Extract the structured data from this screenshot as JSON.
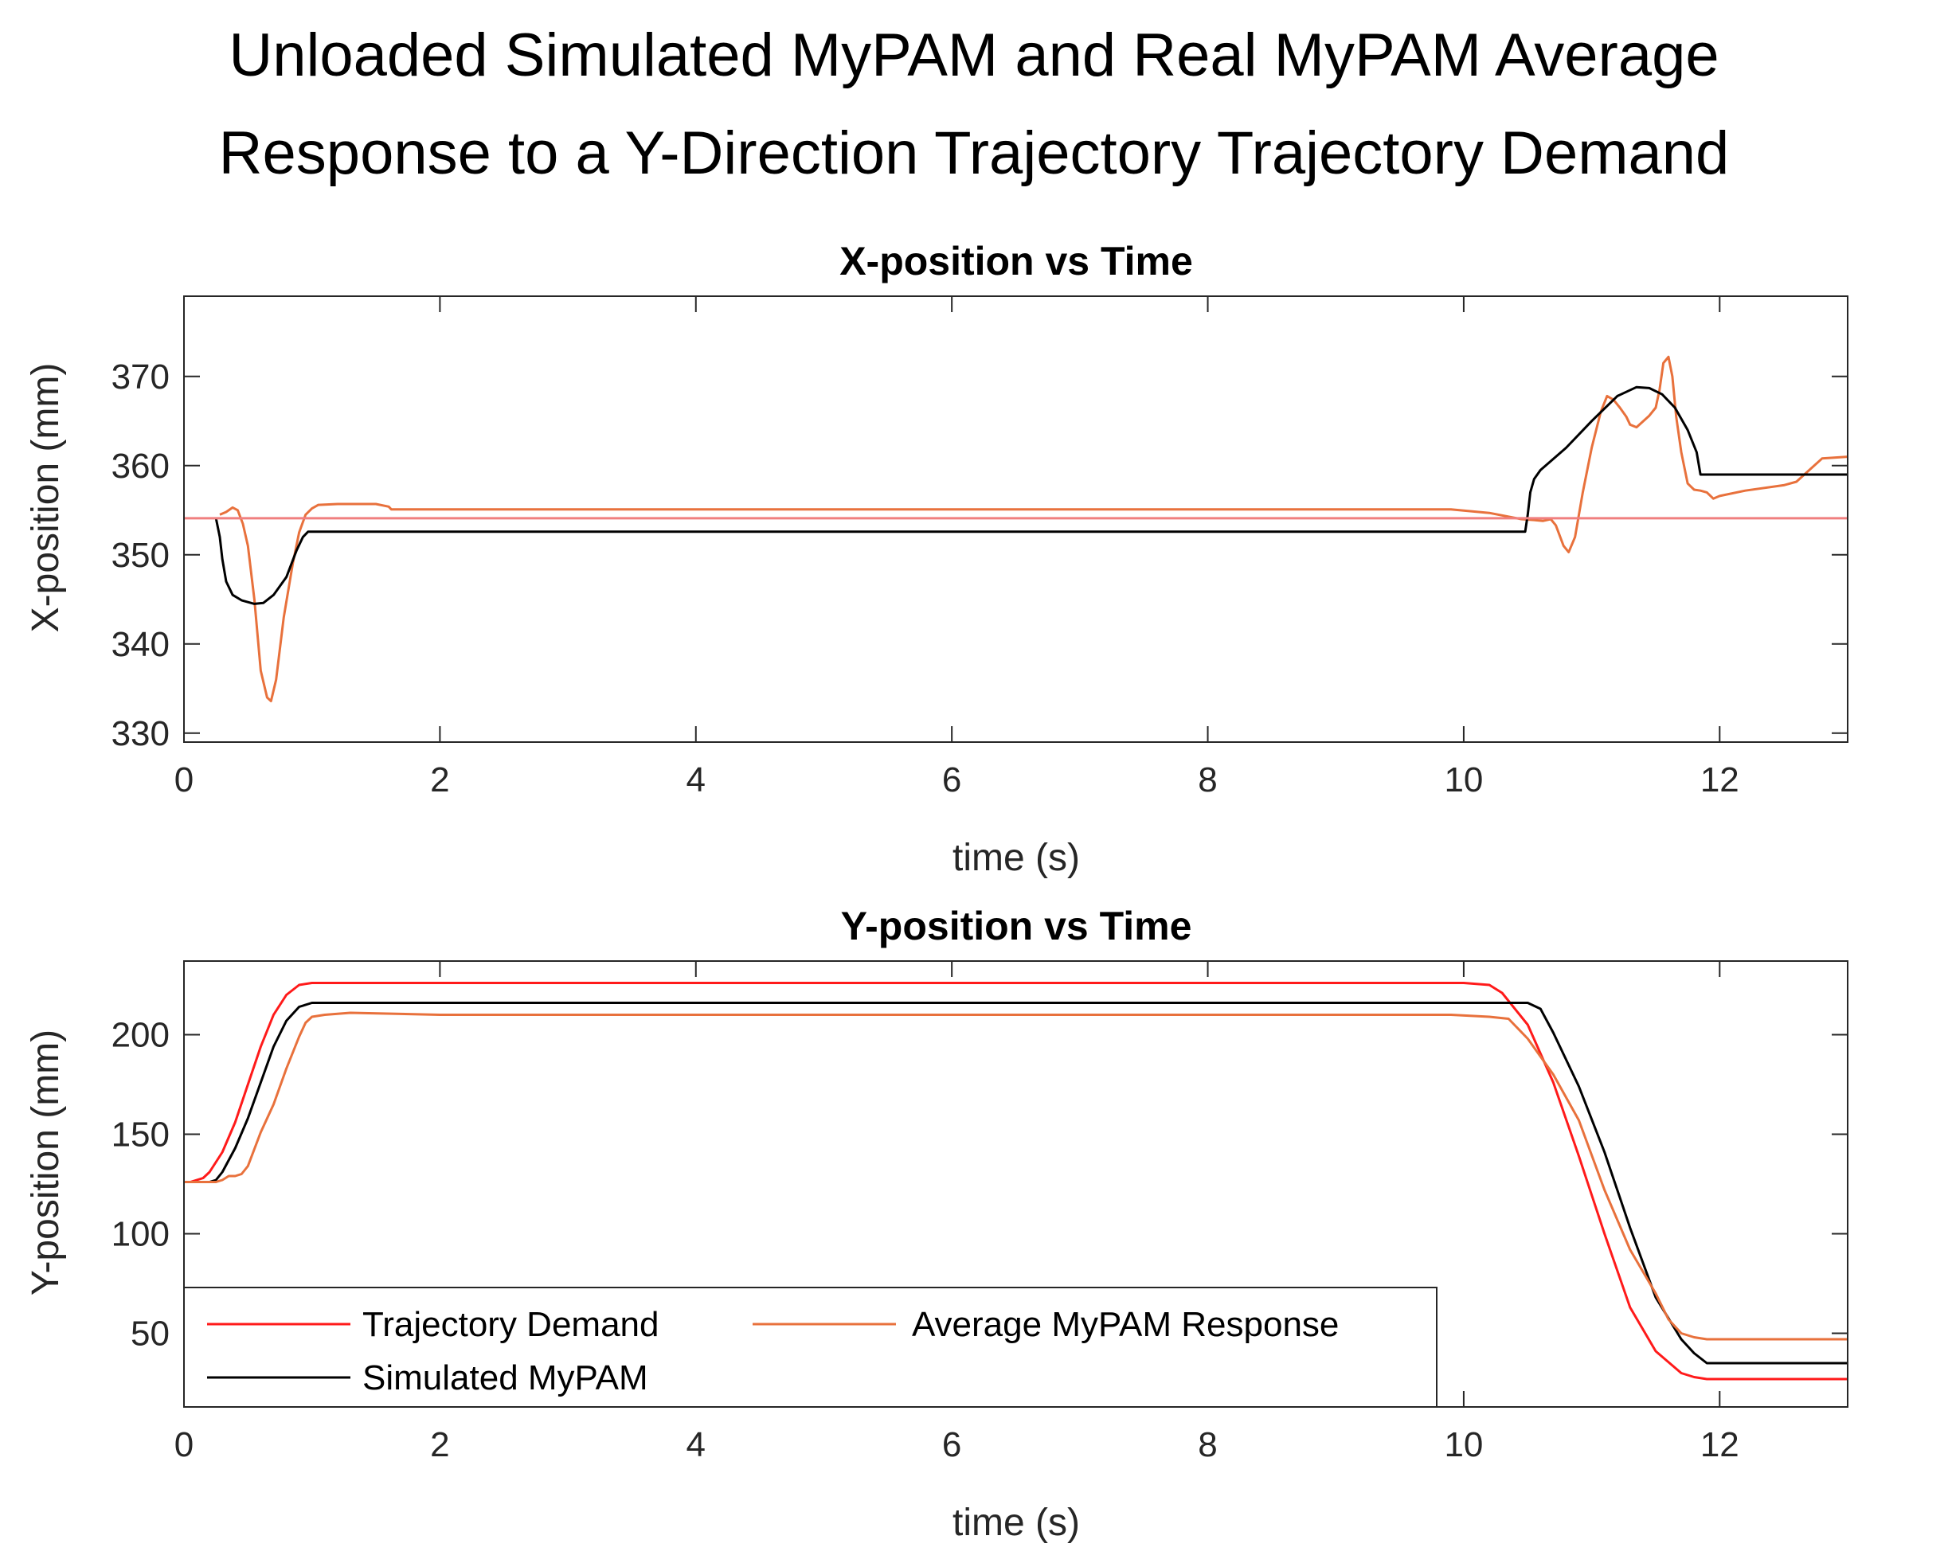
{
  "figure": {
    "title_line1": "Unloaded Simulated MyPAM and Real MyPAM Average",
    "title_line2": "Response to a Y-Direction Trajectory Trajectory Demand"
  },
  "colors": {
    "demand": "#ff1a1a",
    "demand_flat": "#f07f7f",
    "response": "#e8713c",
    "simulated": "#000000",
    "axis": "#262626"
  },
  "chart_data": [
    {
      "type": "line",
      "title": "X-position vs Time",
      "xlabel": "time (s)",
      "ylabel": "X-position (mm)",
      "xlim": [
        0,
        13
      ],
      "ylim": [
        329,
        379
      ],
      "xticks": [
        0,
        2,
        4,
        6,
        8,
        10,
        12
      ],
      "yticks": [
        330,
        340,
        350,
        360,
        370
      ],
      "series": [
        {
          "name": "Trajectory Demand",
          "color_key": "demand_flat",
          "x": [
            0,
            13
          ],
          "y": [
            354.1,
            354.1
          ]
        },
        {
          "name": "Average MyPAM Response",
          "color_key": "response",
          "x": [
            0.28,
            0.33,
            0.38,
            0.42,
            0.46,
            0.5,
            0.55,
            0.6,
            0.65,
            0.68,
            0.72,
            0.78,
            0.85,
            0.9,
            0.95,
            1.0,
            1.05,
            1.2,
            1.5,
            1.6,
            1.62,
            2,
            4,
            6,
            8,
            9.9,
            10.2,
            10.45,
            10.55,
            10.62,
            10.68,
            10.72,
            10.78,
            10.82,
            10.87,
            10.93,
            11.0,
            11.07,
            11.12,
            11.17,
            11.22,
            11.27,
            11.3,
            11.35,
            11.45,
            11.5,
            11.53,
            11.56,
            11.6,
            11.63,
            11.66,
            11.7,
            11.75,
            11.8,
            11.85,
            11.9,
            11.95,
            12.0,
            12.2,
            12.5,
            12.6,
            12.7,
            12.8,
            13.0
          ],
          "y": [
            354.5,
            354.8,
            355.3,
            355.0,
            353.5,
            351.0,
            345.0,
            337.0,
            334.0,
            333.6,
            336.0,
            343.0,
            349.0,
            352.5,
            354.5,
            355.2,
            355.6,
            355.7,
            355.7,
            355.4,
            355.1,
            355.1,
            355.1,
            355.1,
            355.1,
            355.1,
            354.7,
            354.0,
            353.9,
            353.8,
            354.0,
            353.3,
            351.0,
            350.3,
            352.0,
            357.0,
            362.0,
            366.0,
            367.8,
            367.4,
            366.5,
            365.5,
            364.6,
            364.3,
            365.6,
            366.5,
            368.5,
            371.5,
            372.2,
            370.0,
            365.5,
            361.5,
            358.0,
            357.3,
            357.2,
            357.0,
            356.3,
            356.6,
            357.2,
            357.8,
            358.2,
            359.5,
            360.8,
            361.0
          ]
        },
        {
          "name": "Simulated MyPAM",
          "color_key": "simulated",
          "x": [
            0.25,
            0.28,
            0.3,
            0.33,
            0.38,
            0.45,
            0.55,
            0.62,
            0.7,
            0.8,
            0.88,
            0.93,
            0.97,
            2,
            4,
            6,
            8,
            10,
            10.48,
            10.5,
            10.52,
            10.55,
            10.6,
            10.8,
            11.0,
            11.2,
            11.35,
            11.45,
            11.55,
            11.65,
            11.75,
            11.82,
            11.85,
            13.0
          ],
          "y": [
            354.1,
            352.0,
            349.5,
            347.0,
            345.5,
            344.9,
            344.5,
            344.6,
            345.5,
            347.5,
            350.5,
            352.0,
            352.6,
            352.6,
            352.6,
            352.6,
            352.6,
            352.6,
            352.6,
            354.5,
            357.0,
            358.5,
            359.5,
            362.0,
            365.0,
            367.8,
            368.8,
            368.7,
            368.0,
            366.5,
            364.0,
            361.5,
            359.0,
            359.0
          ]
        }
      ]
    },
    {
      "type": "line",
      "title": "Y-position vs Time",
      "xlabel": "time (s)",
      "ylabel": "Y-position (mm)",
      "xlim": [
        0,
        13
      ],
      "ylim": [
        13,
        237
      ],
      "xticks": [
        0,
        2,
        4,
        6,
        8,
        10,
        12
      ],
      "yticks": [
        50,
        100,
        150,
        200
      ],
      "legend_position": "bottom-left",
      "series": [
        {
          "name": "Trajectory Demand",
          "color_key": "demand",
          "x": [
            0,
            0.05,
            0.1,
            0.15,
            0.2,
            0.3,
            0.4,
            0.5,
            0.6,
            0.7,
            0.8,
            0.9,
            1.0,
            1.1,
            2,
            4,
            6,
            8,
            10,
            10.2,
            10.3,
            10.5,
            10.7,
            10.9,
            11.1,
            11.3,
            11.5,
            11.7,
            11.8,
            11.9,
            11.95,
            12.0,
            13.0
          ],
          "y": [
            126,
            126,
            127,
            128,
            131,
            141,
            156,
            175,
            194,
            210,
            220,
            225,
            226,
            226,
            226,
            226,
            226,
            226,
            226,
            225,
            221,
            205,
            176,
            139,
            100,
            63,
            41,
            30,
            28,
            27,
            27,
            27,
            27
          ]
        },
        {
          "name": "Simulated MyPAM",
          "color_key": "simulated",
          "x": [
            0,
            0.2,
            0.25,
            0.3,
            0.4,
            0.5,
            0.6,
            0.7,
            0.8,
            0.9,
            1.0,
            1.1,
            2,
            4,
            6,
            8,
            10,
            10.5,
            10.6,
            10.7,
            10.9,
            11.1,
            11.3,
            11.5,
            11.7,
            11.8,
            11.9,
            12.0,
            13.0
          ],
          "y": [
            126,
            126,
            127,
            131,
            143,
            158,
            176,
            194,
            207,
            214,
            216,
            216,
            216,
            216,
            216,
            216,
            216,
            216,
            213,
            201,
            174,
            141,
            103,
            68,
            47,
            40,
            35,
            35,
            35
          ]
        },
        {
          "name": "Average MyPAM Response",
          "color_key": "response",
          "x": [
            0,
            0.25,
            0.3,
            0.35,
            0.4,
            0.45,
            0.5,
            0.6,
            0.7,
            0.8,
            0.9,
            0.95,
            1.0,
            1.1,
            1.3,
            2,
            4,
            6,
            8,
            9.9,
            10.2,
            10.35,
            10.5,
            10.7,
            10.9,
            11.1,
            11.3,
            11.5,
            11.6,
            11.7,
            11.8,
            11.9,
            12.0,
            13.0
          ],
          "y": [
            126,
            126,
            127,
            129,
            129,
            130,
            134,
            151,
            165,
            183,
            199,
            206,
            209,
            210,
            211,
            210,
            210,
            210,
            210,
            210,
            209,
            208,
            198,
            180,
            157,
            122,
            92,
            70,
            57,
            50,
            48,
            47,
            47,
            47
          ]
        }
      ]
    }
  ]
}
